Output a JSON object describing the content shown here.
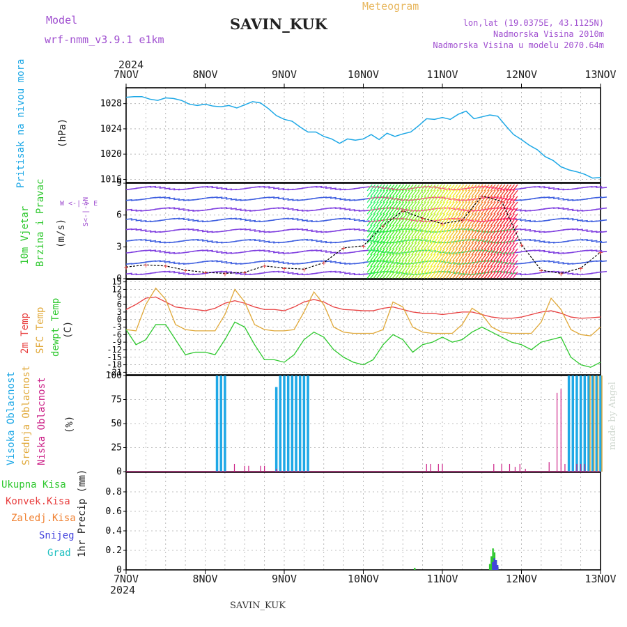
{
  "header": {
    "model_label": "Model",
    "model_name": "wrf-nmm_v3.9.1 e1km",
    "station_title": "SAVIN_KUK",
    "meteogram_label": "Meteogram",
    "lonlat": "lon,lat (19.0375E, 43.1125N)",
    "elevation": "Nadmorska Visina 2010m",
    "model_elevation": "Nadmorska Visina u modelu 2070.64m",
    "year_top": "2024",
    "year_bottom": "2024",
    "footer_station": "SAVIN_KUK",
    "signature": "made by Angel"
  },
  "colors": {
    "pressure": "#1ea8e6",
    "temp2m": "#e84040",
    "sfc": "#e0a838",
    "dewpt": "#2ec82e",
    "high_cloud": "#1ea8e6",
    "mid_cloud": "#e0a838",
    "low_cloud": "#cc2288",
    "total_precip": "#2ec82e",
    "conv_precip": "#e84040",
    "frz_precip": "#f08030",
    "snow": "#4444dd",
    "hail": "#20c0c0",
    "title": "#222222",
    "purple": "#a050d0",
    "wind_label": "#2ec82e",
    "meteogram": "#e8b860"
  },
  "panels": {
    "pressure": {
      "label": "Pritisak na nivou mora",
      "unit": "(hPa)"
    },
    "wind": {
      "label1": "10m Vjetar",
      "label2": "Brzina i Pravac",
      "unit": "(m/s)",
      "compass": "W <-|-> E",
      "compass_v": "S<-|->N"
    },
    "temp": {
      "label1": "2m Temp",
      "label2": "SFC Temp",
      "label3": "dewpt Temp",
      "unit": "(C)"
    },
    "cloud": {
      "label1": "Visoka Oblacnost",
      "label2": "Srednja Oblacnost",
      "label3": "Niska Oblacnost",
      "unit": "(%)"
    },
    "precip": {
      "labels": [
        "Ukupna Kisa",
        "Konvek.Kisa",
        "Zaledj.Kisa",
        "Snijeg",
        "Grad"
      ],
      "unit": "1hr Precip (mm)"
    }
  },
  "chart_data": [
    {
      "type": "line",
      "title": "Pritisak na nivou mora",
      "ylabel": "(hPa)",
      "x_categories": [
        "7NOV",
        "8NOV",
        "9NOV",
        "10NOV",
        "11NOV",
        "12NOV",
        "13NOV"
      ],
      "ylim": [
        1015.5,
        1030.5
      ],
      "yticks": [
        1016,
        1020,
        1024,
        1028
      ],
      "grid": true,
      "series": [
        {
          "name": "Pritisak na nivou mora",
          "x": [
            0,
            0.1,
            0.2,
            0.3,
            0.4,
            0.5,
            0.6,
            0.7,
            0.8,
            0.9,
            1.0,
            1.1,
            1.2,
            1.3,
            1.4,
            1.5,
            1.6,
            1.7,
            1.8,
            1.9,
            2.0,
            2.1,
            2.2,
            2.3,
            2.4,
            2.5,
            2.6,
            2.7,
            2.8,
            2.9,
            3.0,
            3.1,
            3.2,
            3.3,
            3.4,
            3.5,
            3.6,
            3.7,
            3.8,
            3.9,
            4.0,
            4.1,
            4.2,
            4.3,
            4.4,
            4.5,
            4.6,
            4.7,
            4.8,
            4.9,
            5.0,
            5.1,
            5.2,
            5.3,
            5.4,
            5.5,
            5.6,
            5.7,
            5.8,
            5.9,
            6.0
          ],
          "values": [
            1029,
            1029.1,
            1029.1,
            1028.7,
            1028.5,
            1028.9,
            1028.8,
            1028.5,
            1027.9,
            1027.7,
            1027.9,
            1027.6,
            1027.5,
            1027.7,
            1027.3,
            1027.8,
            1028.3,
            1028.1,
            1027.2,
            1026.1,
            1025.5,
            1025.2,
            1024.3,
            1023.5,
            1023.5,
            1022.8,
            1022.4,
            1021.7,
            1022.4,
            1022.2,
            1022.4,
            1023.1,
            1022.3,
            1023.3,
            1022.8,
            1023.2,
            1023.5,
            1024.5,
            1025.6,
            1025.5,
            1025.8,
            1025.5,
            1026.3,
            1026.8,
            1025.6,
            1025.9,
            1026.2,
            1026.0,
            1024.5,
            1023.1,
            1022.3,
            1021.4,
            1020.7,
            1019.6,
            1019.0,
            1018.0,
            1017.5,
            1017.2,
            1016.8,
            1016.2,
            1016.3
          ]
        }
      ]
    },
    {
      "type": "scatter",
      "title": "10m Vjetar Brzina i Pravac",
      "ylabel": "(m/s)",
      "ylim": [
        0,
        9
      ],
      "yticks": [
        0,
        3,
        6,
        9
      ],
      "grid": true,
      "series": [
        {
          "name": "10m Vjetar",
          "x": [
            0,
            0.25,
            0.5,
            0.75,
            1.0,
            1.25,
            1.5,
            1.75,
            2.0,
            2.25,
            2.5,
            2.75,
            3.0,
            3.25,
            3.5,
            3.75,
            4.0,
            4.25,
            4.5,
            4.75,
            5.0,
            5.25,
            5.5,
            5.75,
            6.0
          ],
          "values": [
            1.1,
            1.3,
            1.2,
            0.8,
            0.6,
            0.5,
            0.6,
            1.2,
            1.0,
            0.9,
            1.5,
            2.9,
            3.1,
            5.0,
            6.4,
            5.7,
            5.2,
            5.5,
            7.8,
            7.3,
            3.2,
            0.8,
            0.5,
            1.0,
            2.5
          ]
        }
      ]
    },
    {
      "type": "line",
      "title": "2m Temp / SFC Temp / dewpt Temp",
      "ylabel": "(C)",
      "ylim": [
        -22,
        16
      ],
      "yticks": [
        -21,
        -18,
        -15,
        -12,
        -9,
        -6,
        -3,
        0,
        3,
        6,
        9,
        12,
        15
      ],
      "grid": true,
      "x": [
        0,
        0.125,
        0.25,
        0.375,
        0.5,
        0.625,
        0.75,
        0.875,
        1.0,
        1.125,
        1.25,
        1.375,
        1.5,
        1.625,
        1.75,
        1.875,
        2.0,
        2.125,
        2.25,
        2.375,
        2.5,
        2.625,
        2.75,
        2.875,
        3.0,
        3.125,
        3.25,
        3.375,
        3.5,
        3.625,
        3.75,
        3.875,
        4.0,
        4.125,
        4.25,
        4.375,
        4.5,
        4.625,
        4.75,
        4.875,
        5.0,
        5.125,
        5.25,
        5.375,
        5.5,
        5.625,
        5.75,
        5.875,
        6.0
      ],
      "series": [
        {
          "name": "2m Temp",
          "values": [
            4,
            6,
            8.5,
            9,
            7,
            5,
            4.5,
            4,
            3.5,
            4.5,
            6.5,
            7.5,
            6.5,
            5,
            4,
            4,
            3.5,
            5,
            7,
            8,
            7,
            5,
            4,
            3.8,
            3.5,
            3.5,
            4.5,
            5,
            4,
            3,
            2.5,
            2.5,
            2,
            2.5,
            3,
            3,
            2,
            1,
            0.5,
            0.5,
            1,
            2,
            3,
            3.5,
            2.5,
            1,
            0.5,
            0.7,
            1
          ]
        },
        {
          "name": "SFC Temp",
          "values": [
            -4,
            -4.5,
            6,
            12.5,
            8,
            -2,
            -4,
            -4.5,
            -4.5,
            -4.5,
            2,
            12,
            7,
            -2,
            -4,
            -4.5,
            -4.5,
            -4,
            3,
            11,
            6,
            -3,
            -5,
            -5.5,
            -5.5,
            -5.5,
            -4,
            7,
            5,
            -3,
            -5,
            -5.5,
            -5.5,
            -5.5,
            -2,
            4.5,
            2,
            -3,
            -5,
            -5.5,
            -5.5,
            -5.5,
            -1,
            8.5,
            4,
            -4,
            -6,
            -6.5,
            -3
          ]
        },
        {
          "name": "dewpt Temp",
          "values": [
            -4,
            -10,
            -8,
            -2,
            -2,
            -8,
            -14,
            -13,
            -13,
            -14,
            -8,
            -1,
            -3,
            -10,
            -16,
            -16,
            -17,
            -14,
            -8,
            -5,
            -7,
            -12,
            -15,
            -17,
            -18,
            -16,
            -10,
            -6,
            -8,
            -13,
            -10,
            -9,
            -7,
            -9,
            -8,
            -5,
            -3,
            -5,
            -7,
            -9,
            -10,
            -12,
            -9,
            -8,
            -7,
            -15,
            -18,
            -19,
            -17
          ]
        }
      ]
    },
    {
      "type": "bar",
      "title": "Oblacnost",
      "ylabel": "(%)",
      "ylim": [
        0,
        100
      ],
      "yticks": [
        0,
        25,
        50,
        75,
        100
      ],
      "grid": true,
      "series": [
        {
          "name": "Visoka Oblacnost",
          "x": [
            1.15,
            1.2,
            1.25,
            1.9,
            1.95,
            2.0,
            2.05,
            2.1,
            2.15,
            2.2,
            2.25,
            2.3,
            5.6,
            5.65,
            5.7,
            5.75,
            5.8,
            5.85,
            5.9,
            5.95,
            6.0
          ],
          "values": [
            100,
            100,
            100,
            88,
            100,
            100,
            100,
            100,
            100,
            100,
            100,
            100,
            100,
            100,
            100,
            100,
            100,
            100,
            100,
            100,
            100
          ]
        },
        {
          "name": "Srednja Oblacnost",
          "x": [
            5.85,
            5.9,
            5.95,
            6.0
          ],
          "values": [
            100,
            100,
            100,
            100
          ]
        },
        {
          "name": "Niska Oblacnost",
          "x": [
            1.37,
            1.5,
            1.55,
            1.7,
            1.75,
            1.9,
            4.65,
            4.75,
            4.85,
            4.92,
            4.98,
            5.05,
            5.35,
            5.45,
            5.5,
            5.55,
            5.7,
            5.75,
            5.8,
            3.8,
            3.85,
            3.95,
            4.0
          ],
          "values": [
            8,
            6,
            6,
            6,
            6,
            3,
            8,
            8,
            8,
            5,
            8,
            3,
            10,
            82,
            86,
            8,
            8,
            8,
            8,
            8,
            8,
            8,
            8
          ]
        }
      ]
    },
    {
      "type": "bar",
      "title": "1hr Precip",
      "ylabel": "1hr Precip (mm)",
      "ylim": [
        0,
        1.0
      ],
      "yticks": [
        0,
        0.2,
        0.4,
        0.6,
        0.8
      ],
      "grid": true,
      "series": [
        {
          "name": "Ukupna Kisa",
          "x": [
            3.65,
            4.6,
            4.62,
            4.64,
            4.66,
            4.68,
            4.7
          ],
          "values": [
            0.02,
            0.06,
            0.14,
            0.22,
            0.18,
            0.1,
            0.03
          ]
        },
        {
          "name": "Snijeg",
          "x": [
            4.62,
            4.64,
            4.66,
            4.68
          ],
          "values": [
            0.08,
            0.12,
            0.1,
            0.05
          ]
        }
      ]
    }
  ]
}
